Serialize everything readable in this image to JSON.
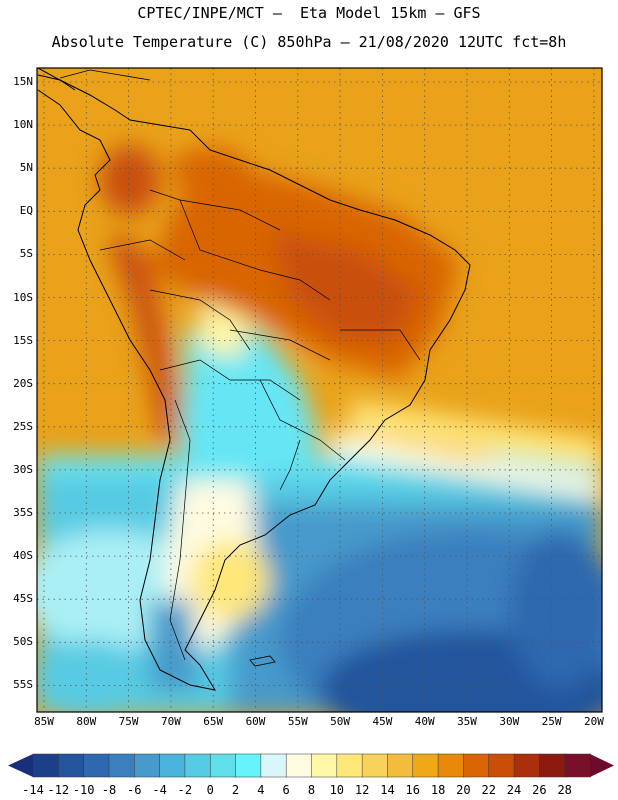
{
  "title_line1": "CPTEC/INPE/MCT –  Eta Model 15km – GFS",
  "title_line2": "Absolute Temperature (C) 850hPa – 21/08/2020 12UTC fct=8h",
  "lat_labels": [
    "15N",
    "10N",
    "5N",
    "EQ",
    "5S",
    "10S",
    "15S",
    "20S",
    "25S",
    "30S",
    "35S",
    "40S",
    "45S",
    "50S",
    "55S"
  ],
  "lon_labels": [
    "85W",
    "80W",
    "75W",
    "70W",
    "65W",
    "60W",
    "55W",
    "50W",
    "45W",
    "40W",
    "35W",
    "30W",
    "25W",
    "20W"
  ],
  "colorbar": {
    "labels": [
      "-14",
      "-12",
      "-10",
      "-8",
      "-6",
      "-4",
      "-2",
      "0",
      "2",
      "4",
      "6",
      "8",
      "10",
      "12",
      "14",
      "16",
      "18",
      "20",
      "22",
      "24",
      "26",
      "28"
    ],
    "colors": [
      "#1c3f8a",
      "#23549c",
      "#2e68ae",
      "#3b7fbe",
      "#479acb",
      "#4cb4da",
      "#56cbe3",
      "#5edfea",
      "#66f4fa",
      "#d9f7fb",
      "#fffbe1",
      "#fff7a8",
      "#ffe77a",
      "#f9d25b",
      "#f3bc3c",
      "#efa818",
      "#e78a09",
      "#d96506",
      "#c94f08",
      "#a9300b",
      "#8b1b0f",
      "#7a0f2a"
    ]
  }
}
